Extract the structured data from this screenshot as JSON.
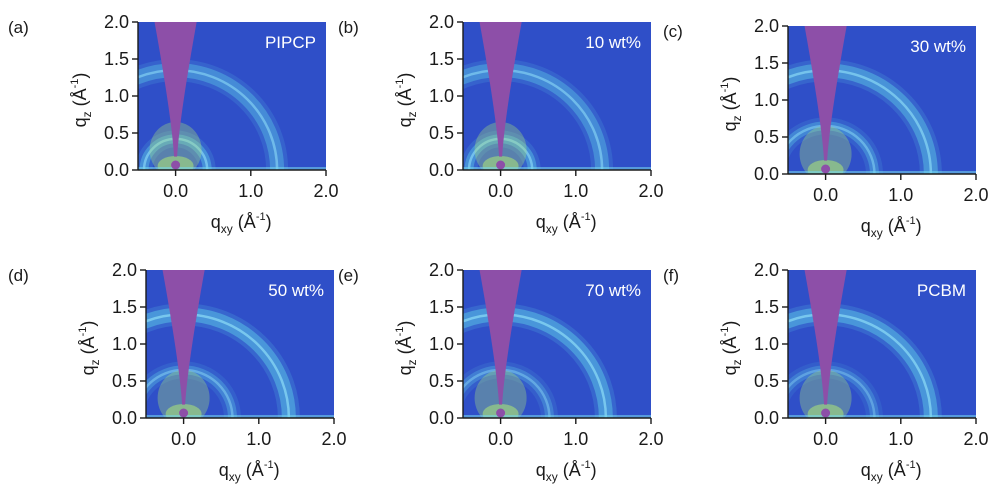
{
  "figure": {
    "axis_ticks": [
      "0.0",
      "0.5",
      "1.0",
      "1.5",
      "2.0"
    ],
    "x_ticks": [
      "0.0",
      "1.0",
      "2.0"
    ],
    "xlabel": {
      "main": "q",
      "sub": "xy",
      "unit": "(Å",
      "sup": "-1",
      "close": ")"
    },
    "ylabel": {
      "main": "q",
      "sub": "z",
      "unit": "(Å",
      "sup": "-1",
      "close": ")"
    },
    "colors": {
      "background": "#2f4fc8",
      "beamstop": "#8d4fa8",
      "ring": "#5fd0e8",
      "hot": "#a8e07a"
    }
  },
  "chart_data": [
    {
      "type": "heatmap",
      "panel": "(a)",
      "sample": "PIPCP",
      "xlim": [
        -0.5,
        2.0
      ],
      "ylim": [
        0.0,
        2.0
      ],
      "rings_q": [
        0.42,
        1.35
      ],
      "ring_intensity": [
        0.9,
        0.85
      ]
    },
    {
      "type": "heatmap",
      "panel": "(b)",
      "sample": "10 wt%",
      "xlim": [
        -0.5,
        2.0
      ],
      "ylim": [
        0.0,
        2.0
      ],
      "rings_q": [
        0.42,
        1.35
      ],
      "ring_intensity": [
        0.9,
        0.85
      ]
    },
    {
      "type": "heatmap",
      "panel": "(c)",
      "sample": "30 wt%",
      "xlim": [
        -0.5,
        2.0
      ],
      "ylim": [
        0.0,
        2.0
      ],
      "rings_q": [
        0.65,
        1.4
      ],
      "ring_intensity": [
        0.75,
        0.95
      ]
    },
    {
      "type": "heatmap",
      "panel": "(d)",
      "sample": "50 wt%",
      "xlim": [
        -0.5,
        2.0
      ],
      "ylim": [
        0.0,
        2.0
      ],
      "rings_q": [
        0.65,
        1.4
      ],
      "ring_intensity": [
        0.7,
        1.0
      ]
    },
    {
      "type": "heatmap",
      "panel": "(e)",
      "sample": "70 wt%",
      "xlim": [
        -0.5,
        2.0
      ],
      "ylim": [
        0.0,
        2.0
      ],
      "rings_q": [
        0.65,
        1.4
      ],
      "ring_intensity": [
        0.65,
        1.0
      ]
    },
    {
      "type": "heatmap",
      "panel": "(f)",
      "sample": "PCBM",
      "xlim": [
        -0.5,
        2.0
      ],
      "ylim": [
        0.0,
        2.0
      ],
      "rings_q": [
        0.65,
        1.4
      ],
      "ring_intensity": [
        0.6,
        1.0
      ]
    }
  ]
}
